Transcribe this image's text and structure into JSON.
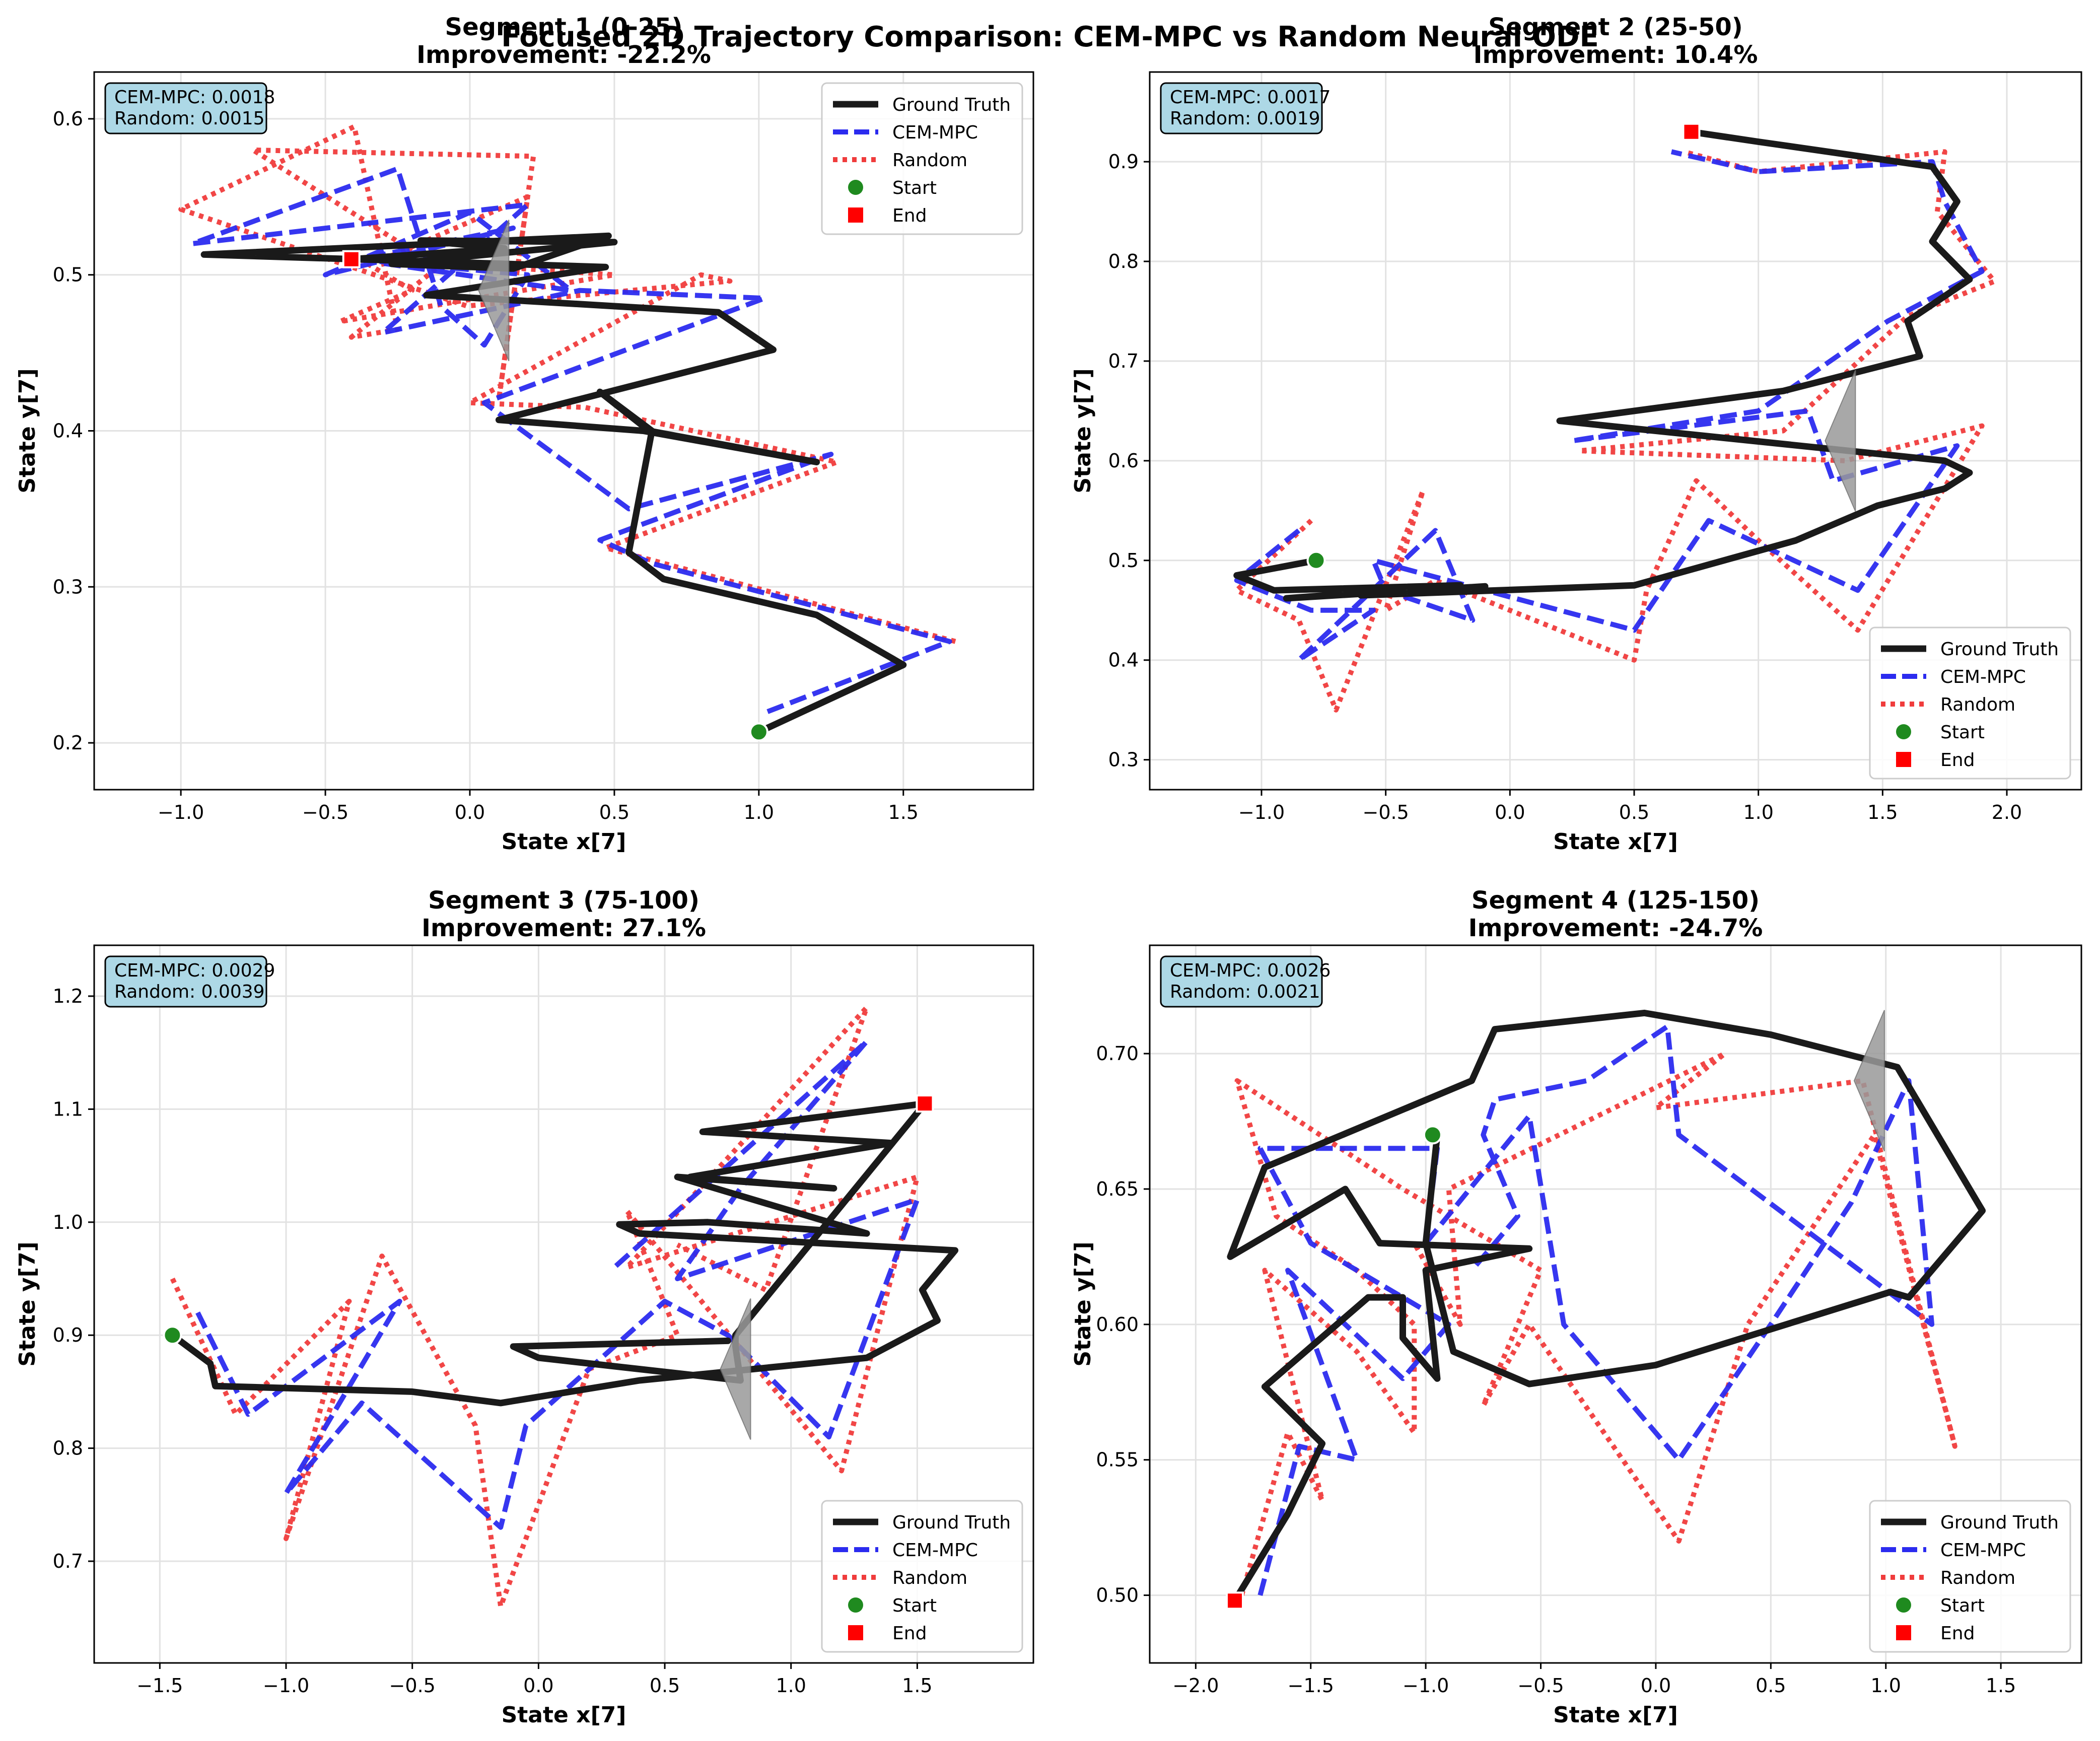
{
  "chart_data": {
    "suptitle": "Focused 2D Trajectory Comparison: CEM-MPC vs Random Neural ODE",
    "legend_entries": [
      "Ground Truth",
      "CEM-MPC",
      "Random",
      "Start",
      "End"
    ],
    "colors": {
      "ground_truth": "#1a1a1a",
      "cem_mpc": "#2b2bef",
      "random": "#f03c3c",
      "start": "#1f8a1f",
      "end": "#ff0000",
      "stats_box": "#add8e6",
      "arrow": "#9a9a9a"
    },
    "panels": [
      {
        "type": "line",
        "title_line1": "Segment 1 (0-25)",
        "title_line2": "Improvement: -22.2%",
        "xlabel": "State x[7]",
        "ylabel": "State y[7]",
        "xlim": [
          -1.3,
          1.95
        ],
        "ylim": [
          0.17,
          0.63
        ],
        "xticks": [
          -1.0,
          -0.5,
          0.0,
          0.5,
          1.0,
          1.5
        ],
        "xtick_labels": [
          "−1.0",
          "−0.5",
          "0.0",
          "0.5",
          "1.0",
          "1.5"
        ],
        "yticks": [
          0.2,
          0.3,
          0.4,
          0.5,
          0.6
        ],
        "ytick_labels": [
          "0.2",
          "0.3",
          "0.4",
          "0.5",
          "0.6"
        ],
        "grid": true,
        "legend_position": "top-right",
        "stats": [
          "CEM-MPC: 0.0018",
          "Random: 0.0015"
        ],
        "start": [
          1.0,
          0.207
        ],
        "end": [
          -0.41,
          0.51
        ],
        "arrow": [
          0.1,
          0.49
        ],
        "series": [
          {
            "name": "Ground Truth",
            "x": [
              1.0,
              1.5,
              1.2,
              0.67,
              0.55,
              0.63,
              0.45,
              0.62,
              1.2,
              0.6,
              0.1,
              1.05,
              0.86,
              -0.15,
              0.47,
              -0.92,
              0.48,
              0.15,
              -0.27,
              0.5,
              -0.17,
              0.12,
              -0.41
            ],
            "y": [
              0.207,
              0.25,
              0.282,
              0.305,
              0.322,
              0.4,
              0.425,
              0.4,
              0.38,
              0.4,
              0.407,
              0.452,
              0.476,
              0.487,
              0.505,
              0.513,
              0.525,
              0.504,
              0.507,
              0.521,
              0.522,
              0.517,
              0.51
            ]
          },
          {
            "name": "CEM-MPC",
            "x": [
              1.03,
              1.66,
              0.63,
              0.45,
              1.25,
              0.55,
              0.05,
              1.02,
              0.38,
              -0.3,
              0.2,
              -0.96,
              -0.25,
              -0.1,
              0.05,
              0.2,
              -0.4,
              0.35,
              0.0,
              -0.5,
              0.15,
              -0.38
            ],
            "y": [
              0.22,
              0.265,
              0.315,
              0.33,
              0.385,
              0.35,
              0.418,
              0.485,
              0.49,
              0.463,
              0.545,
              0.52,
              0.568,
              0.48,
              0.455,
              0.5,
              0.51,
              0.49,
              0.54,
              0.5,
              0.53,
              0.51
            ]
          },
          {
            "name": "Random",
            "x": [
              1.68,
              0.47,
              1.27,
              0.4,
              0.0,
              0.8,
              0.9,
              -0.01,
              -1.0,
              -0.4,
              -0.25,
              -0.41,
              -0.11,
              -0.75,
              0.22,
              0.1,
              0.2,
              -0.3,
              0.5,
              -0.45,
              -0.2,
              -0.38
            ],
            "y": [
              0.265,
              0.325,
              0.38,
              0.415,
              0.418,
              0.5,
              0.496,
              0.48,
              0.542,
              0.595,
              0.465,
              0.46,
              0.505,
              0.58,
              0.576,
              0.42,
              0.55,
              0.51,
              0.5,
              0.47,
              0.49,
              0.51
            ]
          }
        ]
      },
      {
        "type": "line",
        "title_line1": "Segment 2 (25-50)",
        "title_line2": "Improvement: 10.4%",
        "xlabel": "State x[7]",
        "ylabel": "State y[7]",
        "xlim": [
          -1.45,
          2.3
        ],
        "ylim": [
          0.27,
          0.99
        ],
        "xticks": [
          -1.0,
          -0.5,
          0.0,
          0.5,
          1.0,
          1.5,
          2.0
        ],
        "xtick_labels": [
          "−1.0",
          "−0.5",
          "0.0",
          "0.5",
          "1.0",
          "1.5",
          "2.0"
        ],
        "yticks": [
          0.3,
          0.4,
          0.5,
          0.6,
          0.7,
          0.8,
          0.9
        ],
        "ytick_labels": [
          "0.3",
          "0.4",
          "0.5",
          "0.6",
          "0.7",
          "0.8",
          "0.9"
        ],
        "grid": true,
        "legend_position": "bottom-right",
        "stats": [
          "CEM-MPC: 0.0017",
          "Random: 0.0019"
        ],
        "start": [
          -0.78,
          0.5
        ],
        "end": [
          0.73,
          0.93
        ],
        "arrow": [
          1.35,
          0.62
        ],
        "series": [
          {
            "name": "Ground Truth",
            "x": [
              -0.78,
              -1.1,
              -0.95,
              -0.2,
              -0.9,
              -0.1,
              -0.6,
              0.5,
              1.15,
              1.48,
              1.75,
              1.85,
              1.75,
              0.2,
              1.1,
              1.65,
              1.6,
              1.85,
              1.7,
              1.8,
              1.7,
              1.0,
              0.73
            ],
            "y": [
              0.5,
              0.485,
              0.47,
              0.475,
              0.462,
              0.474,
              0.465,
              0.475,
              0.52,
              0.555,
              0.572,
              0.588,
              0.6,
              0.64,
              0.67,
              0.705,
              0.74,
              0.782,
              0.82,
              0.86,
              0.895,
              0.92,
              0.93
            ]
          },
          {
            "name": "CEM-MPC",
            "x": [
              -0.85,
              -1.1,
              -0.8,
              -0.55,
              -0.85,
              -0.3,
              -0.15,
              -0.5,
              -0.55,
              0.5,
              0.8,
              1.4,
              1.8,
              1.3,
              1.2,
              0.25,
              1.0,
              1.52,
              1.9,
              1.75,
              1.7,
              1.0,
              0.65
            ],
            "y": [
              0.53,
              0.48,
              0.45,
              0.45,
              0.4,
              0.53,
              0.44,
              0.47,
              0.5,
              0.43,
              0.54,
              0.47,
              0.615,
              0.58,
              0.65,
              0.62,
              0.65,
              0.74,
              0.79,
              0.86,
              0.9,
              0.89,
              0.91
            ]
          },
          {
            "name": "Random",
            "x": [
              -0.8,
              -1.1,
              -0.85,
              -0.7,
              -0.35,
              -0.5,
              -0.3,
              0.0,
              0.5,
              0.55,
              0.75,
              1.0,
              1.4,
              1.9,
              1.35,
              0.28,
              1.1,
              1.6,
              1.95,
              1.72,
              1.75,
              1.0,
              0.7
            ],
            "y": [
              0.54,
              0.47,
              0.44,
              0.35,
              0.57,
              0.45,
              0.48,
              0.45,
              0.4,
              0.47,
              0.58,
              0.52,
              0.43,
              0.635,
              0.6,
              0.61,
              0.63,
              0.745,
              0.78,
              0.85,
              0.91,
              0.89,
              0.91
            ]
          }
        ]
      },
      {
        "type": "line",
        "title_line1": "Segment 3 (75-100)",
        "title_line2": "Improvement: 27.1%",
        "xlabel": "State x[7]",
        "ylabel": "State y[7]",
        "xlim": [
          -1.76,
          1.96
        ],
        "ylim": [
          0.61,
          1.245
        ],
        "xticks": [
          -1.5,
          -1.0,
          -0.5,
          0.0,
          0.5,
          1.0,
          1.5
        ],
        "xtick_labels": [
          "−1.5",
          "−1.0",
          "−0.5",
          "0.0",
          "0.5",
          "1.0",
          "1.5"
        ],
        "yticks": [
          0.7,
          0.8,
          0.9,
          1.0,
          1.1,
          1.2
        ],
        "ytick_labels": [
          "0.7",
          "0.8",
          "0.9",
          "1.0",
          "1.1",
          "1.2"
        ],
        "grid": true,
        "legend_position": "bottom-right",
        "stats": [
          "CEM-MPC: 0.0029",
          "Random: 0.0039"
        ],
        "start": [
          -1.45,
          0.9
        ],
        "end": [
          1.53,
          1.105
        ],
        "arrow": [
          0.8,
          0.87
        ],
        "series": [
          {
            "name": "Ground Truth",
            "x": [
              -1.45,
              -1.3,
              -1.28,
              -0.5,
              -0.15,
              0.4,
              1.3,
              1.58,
              1.52,
              1.65,
              0.4,
              0.32,
              0.67,
              1.3,
              0.55,
              1.17,
              0.6,
              1.4,
              0.65,
              1.53,
              0.78,
              0.78,
              0.8,
              0.0,
              -0.1,
              0.75
            ],
            "y": [
              0.9,
              0.875,
              0.855,
              0.85,
              0.84,
              0.86,
              0.88,
              0.913,
              0.94,
              0.975,
              0.99,
              0.998,
              1.0,
              0.99,
              1.04,
              1.03,
              1.04,
              1.07,
              1.08,
              1.105,
              0.9,
              0.89,
              0.86,
              0.88,
              0.89,
              0.895
            ]
          },
          {
            "name": "CEM-MPC",
            "x": [
              -1.35,
              -1.15,
              -0.55,
              -1.0,
              -0.7,
              -0.15,
              -0.05,
              0.5,
              0.75,
              1.15,
              1.5,
              0.55,
              0.8,
              1.3,
              0.45,
              0.3
            ],
            "y": [
              0.92,
              0.83,
              0.93,
              0.76,
              0.84,
              0.73,
              0.82,
              0.93,
              0.9,
              0.81,
              1.02,
              0.95,
              1.03,
              1.16,
              0.99,
              0.96
            ]
          },
          {
            "name": "Random",
            "x": [
              -1.45,
              -1.2,
              -0.75,
              -1.0,
              -0.62,
              -0.25,
              -0.15,
              0.2,
              0.55,
              0.35,
              1.2,
              1.5,
              0.35,
              1.3,
              0.9,
              0.55
            ],
            "y": [
              0.95,
              0.83,
              0.93,
              0.72,
              0.97,
              0.82,
              0.66,
              0.87,
              0.9,
              1.01,
              0.78,
              1.04,
              0.96,
              1.19,
              0.94,
              0.98
            ]
          }
        ]
      },
      {
        "type": "line",
        "title_line1": "Segment 4 (125-150)",
        "title_line2": "Improvement: -24.7%",
        "xlabel": "State x[7]",
        "ylabel": "State y[7]",
        "xlim": [
          -2.2,
          1.85
        ],
        "ylim": [
          0.475,
          0.74
        ],
        "xticks": [
          -2.0,
          -1.5,
          -1.0,
          -0.5,
          0.0,
          0.5,
          1.0,
          1.5
        ],
        "xtick_labels": [
          "−2.0",
          "−1.5",
          "−1.0",
          "−0.5",
          "0.0",
          "0.5",
          "1.0",
          "1.5"
        ],
        "yticks": [
          0.5,
          0.55,
          0.6,
          0.65,
          0.7
        ],
        "ytick_labels": [
          "0.50",
          "0.55",
          "0.60",
          "0.65",
          "0.70"
        ],
        "grid": true,
        "legend_position": "bottom-right",
        "stats": [
          "CEM-MPC: 0.0026",
          "Random: 0.0021"
        ],
        "start": [
          -0.97,
          0.67
        ],
        "end": [
          -1.83,
          0.498
        ],
        "arrow": [
          0.95,
          0.69
        ],
        "series": [
          {
            "name": "Ground Truth",
            "x": [
              -1.83,
              -1.6,
              -1.45,
              -1.7,
              -1.25,
              -1.1,
              -1.1,
              -0.95,
              -1.0,
              -0.55,
              -1.2,
              -1.35,
              -1.85,
              -1.7,
              -0.8,
              -0.7,
              -0.05,
              0.5,
              1.05,
              1.42,
              1.1,
              1.02,
              0.0,
              -0.55,
              -0.88,
              -1.0,
              -0.95
            ],
            "y": [
              0.498,
              0.53,
              0.556,
              0.577,
              0.61,
              0.61,
              0.595,
              0.58,
              0.62,
              0.628,
              0.63,
              0.65,
              0.625,
              0.658,
              0.69,
              0.709,
              0.715,
              0.707,
              0.695,
              0.642,
              0.61,
              0.612,
              0.585,
              0.578,
              0.59,
              0.63,
              0.67
            ]
          },
          {
            "name": "CEM-MPC",
            "x": [
              -1.72,
              -1.55,
              -1.3,
              -1.6,
              -1.1,
              -0.9,
              -1.3,
              -1.5,
              -1.72,
              -0.95,
              -1.0,
              -0.55,
              -0.4,
              0.1,
              0.5,
              0.85,
              1.1,
              1.2,
              0.1,
              0.05,
              -0.3,
              -0.7,
              -0.75,
              -0.6,
              -0.8
            ],
            "y": [
              0.5,
              0.555,
              0.55,
              0.62,
              0.58,
              0.6,
              0.62,
              0.63,
              0.665,
              0.665,
              0.63,
              0.677,
              0.6,
              0.55,
              0.6,
              0.645,
              0.69,
              0.6,
              0.67,
              0.71,
              0.69,
              0.683,
              0.67,
              0.64,
              0.62
            ]
          },
          {
            "name": "Random",
            "x": [
              -1.8,
              -1.6,
              -1.45,
              -1.7,
              -1.3,
              -1.05,
              -1.05,
              -1.3,
              -1.65,
              -1.82,
              -1.1,
              -0.5,
              -0.75,
              -0.55,
              0.1,
              0.4,
              0.95,
              1.3,
              0.9,
              0.0,
              0.3,
              -0.9,
              -0.85,
              -1.05
            ],
            "y": [
              0.5,
              0.56,
              0.535,
              0.62,
              0.59,
              0.56,
              0.6,
              0.62,
              0.64,
              0.69,
              0.65,
              0.62,
              0.57,
              0.6,
              0.52,
              0.6,
              0.67,
              0.555,
              0.69,
              0.68,
              0.7,
              0.65,
              0.6,
              0.63
            ]
          }
        ]
      }
    ]
  }
}
